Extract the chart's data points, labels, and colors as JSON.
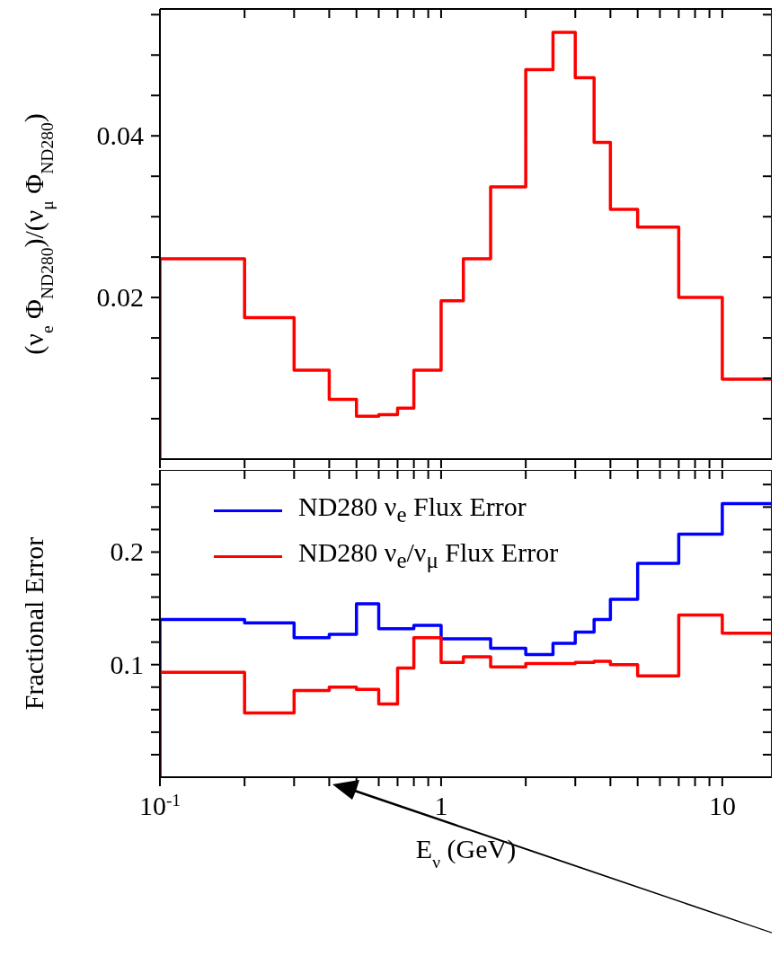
{
  "chart_data": [
    {
      "type": "histogram",
      "ylabel": "(ν$_{e}$ Φ$_{ND280}$)/(ν$_{μ}$ Φ$_{ND280}$)",
      "bins": [
        0.1,
        0.2,
        0.3,
        0.4,
        0.5,
        0.6,
        0.7,
        0.8,
        1.0,
        1.2,
        1.5,
        2.0,
        2.5,
        3.0,
        3.5,
        4.0,
        5.0,
        7.0,
        10.0,
        15.0
      ],
      "values": [
        0.0248,
        0.0175,
        0.011,
        0.0074,
        0.0053,
        0.0055,
        0.0063,
        0.011,
        0.0196,
        0.0248,
        0.0337,
        0.0482,
        0.0528,
        0.0472,
        0.0392,
        0.0309,
        0.0287,
        0.02,
        0.0099
      ],
      "color": "#ff0000",
      "log": "x",
      "tick_labels": "y",
      "xlim": [
        0.1,
        15
      ],
      "xticks": [
        0.1,
        0.2,
        0.3,
        0.4,
        0.5,
        0.6,
        0.7,
        0.8,
        0.9,
        1,
        2,
        3,
        4,
        5,
        6,
        7,
        8,
        9,
        10
      ],
      "ylim": [
        0,
        0.0557
      ],
      "yticks": [
        {
          "value": 0.005,
          "label": null
        },
        {
          "value": 0.01,
          "label": null
        },
        {
          "value": 0.015,
          "label": null
        },
        0.02,
        {
          "value": 0.025,
          "label": null
        },
        {
          "value": 0.03,
          "label": null
        },
        {
          "value": 0.035,
          "label": null
        },
        0.04,
        {
          "value": 0.045,
          "label": null
        },
        {
          "value": 0.05,
          "label": null
        },
        {
          "value": 0.055,
          "label": null
        }
      ]
    },
    {
      "type": "histogram",
      "xlabel": "E$_{ν}$ (GeV)",
      "ylabel": "Fractional Error",
      "bins": [
        0.1,
        0.2,
        0.3,
        0.4,
        0.5,
        0.6,
        0.7,
        0.8,
        1.0,
        1.2,
        1.5,
        2.0,
        2.5,
        3.0,
        3.5,
        4.0,
        5.0,
        7.0,
        10.0,
        15.0
      ],
      "series": [
        {
          "name": "ND280 ν$_{e}$ Flux Error",
          "color": "#0000ff",
          "values": [
            0.14,
            0.137,
            0.124,
            0.127,
            0.154,
            0.132,
            0.132,
            0.135,
            0.123,
            0.123,
            0.1145,
            0.109,
            0.119,
            0.129,
            0.14,
            0.158,
            0.19,
            0.216,
            0.243
          ]
        },
        {
          "name": "ND280 ν$_{e}$/ν$_{μ}$ Flux Error",
          "color": "#ff0000",
          "values": [
            0.0932,
            0.057,
            0.077,
            0.08,
            0.078,
            0.065,
            0.097,
            0.124,
            0.102,
            0.107,
            0.098,
            0.101,
            0.101,
            0.102,
            0.103,
            0.1,
            0.09,
            0.144,
            0.128
          ]
        }
      ],
      "legend": "top left",
      "log": "x",
      "xlim": [
        0.1,
        15
      ],
      "xticks": [
        {
          "value": 0.1,
          "label": "10$^{-1}$"
        },
        {
          "value": 0.2,
          "label": null
        },
        {
          "value": 0.3,
          "label": null
        },
        {
          "value": 0.4,
          "label": null
        },
        {
          "value": 0.5,
          "label": null
        },
        {
          "value": 0.6,
          "label": null
        },
        {
          "value": 0.7,
          "label": null
        },
        {
          "value": 0.8,
          "label": null
        },
        {
          "value": 0.9,
          "label": null
        },
        1,
        {
          "value": 2,
          "label": null
        },
        {
          "value": 3,
          "label": null
        },
        {
          "value": 4,
          "label": null
        },
        {
          "value": 5,
          "label": null
        },
        {
          "value": 6,
          "label": null
        },
        {
          "value": 7,
          "label": null
        },
        {
          "value": 8,
          "label": null
        },
        {
          "value": 9,
          "label": null
        },
        10
      ],
      "ylim": [
        0,
        0.273
      ],
      "yticks": [
        {
          "value": 0.02,
          "label": null
        },
        {
          "value": 0.04,
          "label": null
        },
        {
          "value": 0.06,
          "label": null
        },
        {
          "value": 0.08,
          "label": null
        },
        0.1,
        {
          "value": 0.12,
          "label": null
        },
        {
          "value": 0.14,
          "label": null
        },
        {
          "value": 0.16,
          "label": null
        },
        {
          "value": 0.18,
          "label": null
        },
        0.2,
        {
          "value": 0.22,
          "label": null
        },
        {
          "value": 0.24,
          "label": null
        },
        {
          "value": 0.26,
          "label": null
        }
      ]
    }
  ]
}
